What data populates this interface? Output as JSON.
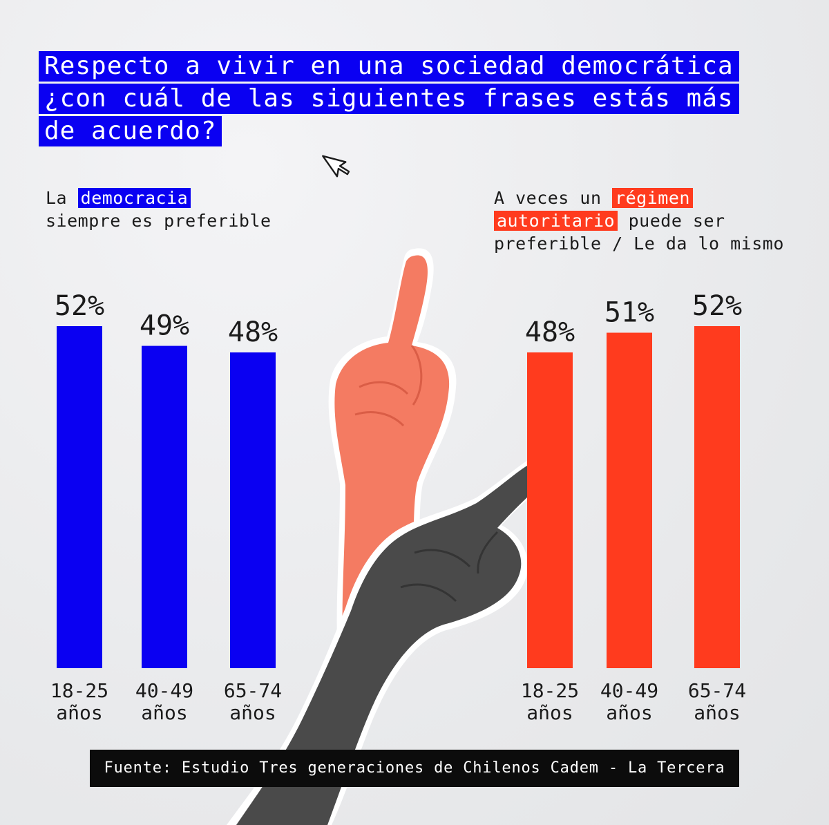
{
  "title": {
    "lines": [
      "Respecto a vivir en una sociedad democrática",
      "¿con cuál de las siguientes frases estás más",
      "de acuerdo?"
    ]
  },
  "left_label": {
    "prefix": "La ",
    "highlight": "democracia",
    "line2": "siempre es preferible"
  },
  "right_label": {
    "line1_prefix": "A veces un ",
    "line1_highlight": "régimen",
    "line2_highlight": "autoritario",
    "line2_suffix": " puede ser",
    "line3": "preferible / Le da lo mismo"
  },
  "source": "Fuente: Estudio Tres generaciones de Chilenos Cadem - La Tercera",
  "colors": {
    "blue": "#0a00f2",
    "red": "#ff3b1e",
    "background": "#ecedef",
    "text": "#1b1b1b"
  },
  "icons": [
    "cursor-arrow-icon",
    "hand-pointing-up-illustration",
    "hand-pointing-diagonal-illustration"
  ],
  "chart_data": [
    {
      "type": "bar",
      "categories": [
        "18-25 años",
        "40-49 años",
        "65-74 años"
      ],
      "values": [
        52,
        49,
        48
      ],
      "value_labels": [
        "52%",
        "49%",
        "48%"
      ],
      "category_lines": [
        [
          "18-25",
          "años"
        ],
        [
          "40-49",
          "años"
        ],
        [
          "65-74",
          "años"
        ]
      ],
      "color": "#0a00f2",
      "ylim": [
        0,
        52
      ],
      "grid": false
    },
    {
      "type": "bar",
      "categories": [
        "18-25 años",
        "40-49 años",
        "65-74 años"
      ],
      "values": [
        48,
        51,
        52
      ],
      "value_labels": [
        "48%",
        "51%",
        "52%"
      ],
      "category_lines": [
        [
          "18-25",
          "años"
        ],
        [
          "40-49",
          "años"
        ],
        [
          "65-74",
          "años"
        ]
      ],
      "color": "#ff3b1e",
      "ylim": [
        0,
        52
      ],
      "grid": false
    }
  ]
}
